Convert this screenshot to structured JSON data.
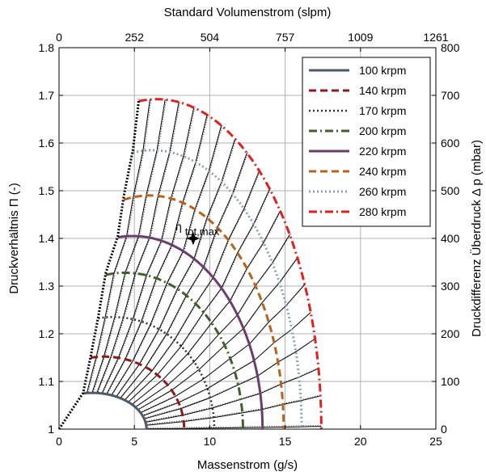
{
  "chart_data": {
    "type": "line",
    "xlabel": "Massenstrom (g/s)",
    "ylabel": "Druckverhältnis Π (-)",
    "top_xlabel": "Standard Volumenstrom (slpm)",
    "right_ylabel": "Druckdifferenz Überdruck Δ p (mbar)",
    "xlim": [
      0,
      25
    ],
    "ylim": [
      1,
      1.8
    ],
    "top_xlim": [
      0,
      1261
    ],
    "right_ylim": [
      0,
      800
    ],
    "x_ticks": [
      "0",
      "5",
      "10",
      "15",
      "20",
      "25"
    ],
    "y_ticks": [
      "1",
      "1.1",
      "1.2",
      "1.3",
      "1.4",
      "1.5",
      "1.6",
      "1.7",
      "1.8"
    ],
    "top_ticks": [
      "0",
      "252",
      "504",
      "757",
      "1009",
      "1261"
    ],
    "right_ticks": [
      "0",
      "100",
      "200",
      "300",
      "400",
      "500",
      "600",
      "700",
      "800"
    ],
    "grid": true,
    "legend_position": "top-right",
    "speed_lines": [
      {
        "name": "100 krpm",
        "color": "#4d5a68",
        "dash": "",
        "width": 3,
        "y_peak": 1.076,
        "x_surge": 1.6,
        "x_peak": 2.2,
        "x_max": 5.8
      },
      {
        "name": "140 krpm",
        "color": "#8b1a1a",
        "dash": "9,5",
        "width": 3,
        "y_peak": 1.152,
        "x_surge": 2.1,
        "x_peak": 3.0,
        "x_max": 8.3
      },
      {
        "name": "170 krpm",
        "color": "#303030",
        "dash": "2,3",
        "width": 2.5,
        "y_peak": 1.235,
        "x_surge": 2.6,
        "x_peak": 3.6,
        "x_max": 10.3
      },
      {
        "name": "200 krpm",
        "color": "#3f5f2f",
        "dash": "10,4,2,4",
        "width": 3,
        "y_peak": 1.328,
        "x_surge": 3.1,
        "x_peak": 4.4,
        "x_max": 12.2
      },
      {
        "name": "220 krpm",
        "color": "#6a3d6e",
        "dash": "",
        "width": 3,
        "y_peak": 1.405,
        "x_surge": 3.9,
        "x_peak": 4.9,
        "x_max": 13.5
      },
      {
        "name": "240 krpm",
        "color": "#b8631c",
        "dash": "9,5",
        "width": 3,
        "y_peak": 1.49,
        "x_surge": 4.3,
        "x_peak": 6.0,
        "x_max": 14.9
      },
      {
        "name": "260 krpm",
        "color": "#8da0b0",
        "dash": "2,3",
        "width": 3,
        "y_peak": 1.585,
        "x_surge": 4.9,
        "x_peak": 6.2,
        "x_max": 16.1
      },
      {
        "name": "280 krpm",
        "color": "#e02020",
        "dash": "10,4,2,4",
        "width": 3,
        "y_peak": 1.692,
        "x_surge": 5.3,
        "x_peak": 6.5,
        "x_max": 17.4
      }
    ],
    "surge_line": {
      "x": [
        0,
        1.6,
        2.1,
        2.6,
        3.1,
        3.9,
        4.3,
        4.9,
        5.3
      ],
      "y": [
        1,
        1.076,
        1.152,
        1.235,
        1.328,
        1.405,
        1.49,
        1.585,
        1.692
      ]
    },
    "max_efficiency_point": {
      "x": 8.9,
      "y": 1.4
    },
    "annotation": {
      "main": "η",
      "subscript": "tot,max"
    }
  }
}
